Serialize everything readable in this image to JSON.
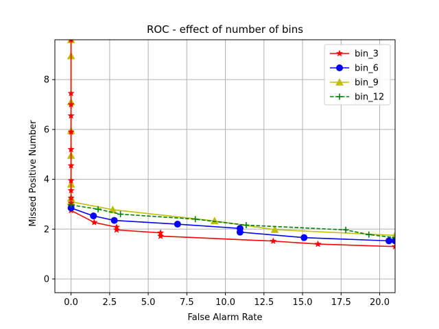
{
  "chart_data": {
    "type": "line",
    "title": "ROC - effect of number of bins",
    "xlabel": "False Alarm Rate",
    "ylabel": "Missed Positive Number",
    "xlim": [
      -1.05,
      21.0
    ],
    "ylim": [
      -0.55,
      9.6
    ],
    "xticks": [
      0.0,
      2.5,
      5.0,
      7.5,
      10.0,
      12.5,
      15.0,
      17.5,
      20.0
    ],
    "xtick_labels": [
      "0.0",
      "2.5",
      "5.0",
      "7.5",
      "10.0",
      "12.5",
      "15.0",
      "17.5",
      "20.0"
    ],
    "yticks": [
      0,
      2,
      4,
      6,
      8
    ],
    "ytick_labels": [
      "0",
      "2",
      "4",
      "6",
      "8"
    ],
    "grid": true,
    "legend_position": "top-right",
    "series": [
      {
        "name": "bin_3",
        "color": "#ff0000",
        "marker": "star",
        "linestyle": "solid",
        "x": [
          0.0,
          0.0,
          0.0,
          0.0,
          0.0,
          0.0,
          0.0,
          0.0,
          0.0,
          0.0,
          0.0,
          0.0,
          0.0,
          0.0,
          1.5,
          2.95,
          2.95,
          5.8,
          5.8,
          13.1,
          16.0,
          21.0
        ],
        "y": [
          9.6,
          7.45,
          7.0,
          6.55,
          5.9,
          5.2,
          4.55,
          3.95,
          3.55,
          3.25,
          3.05,
          2.95,
          2.85,
          2.75,
          2.27,
          2.08,
          1.97,
          1.85,
          1.72,
          1.52,
          1.4,
          1.3
        ]
      },
      {
        "name": "bin_6",
        "color": "#0000ff",
        "marker": "circle",
        "linestyle": "solid",
        "x": [
          0.0,
          1.45,
          2.8,
          6.9,
          10.95,
          10.95,
          15.1,
          20.6,
          21.0
        ],
        "y": [
          2.85,
          2.53,
          2.35,
          2.2,
          2.03,
          1.88,
          1.66,
          1.53,
          1.53
        ]
      },
      {
        "name": "bin_9",
        "color": "#bfbf00",
        "marker": "triangle",
        "linestyle": "solid",
        "x": [
          0.0,
          0.0,
          0.0,
          0.0,
          0.0,
          0.0,
          0.0,
          0.0,
          2.7,
          9.3,
          13.2,
          21.0
        ],
        "y": [
          9.6,
          8.95,
          7.1,
          5.95,
          4.95,
          3.8,
          3.25,
          3.1,
          2.78,
          2.33,
          1.98,
          1.75
        ]
      },
      {
        "name": "bin_12",
        "color": "#008000",
        "marker": "plus",
        "linestyle": "dashed",
        "x": [
          0.0,
          1.75,
          3.2,
          8.05,
          11.35,
          17.8,
          19.3,
          21.0
        ],
        "y": [
          2.97,
          2.8,
          2.6,
          2.4,
          2.16,
          1.97,
          1.78,
          1.66
        ]
      }
    ]
  }
}
